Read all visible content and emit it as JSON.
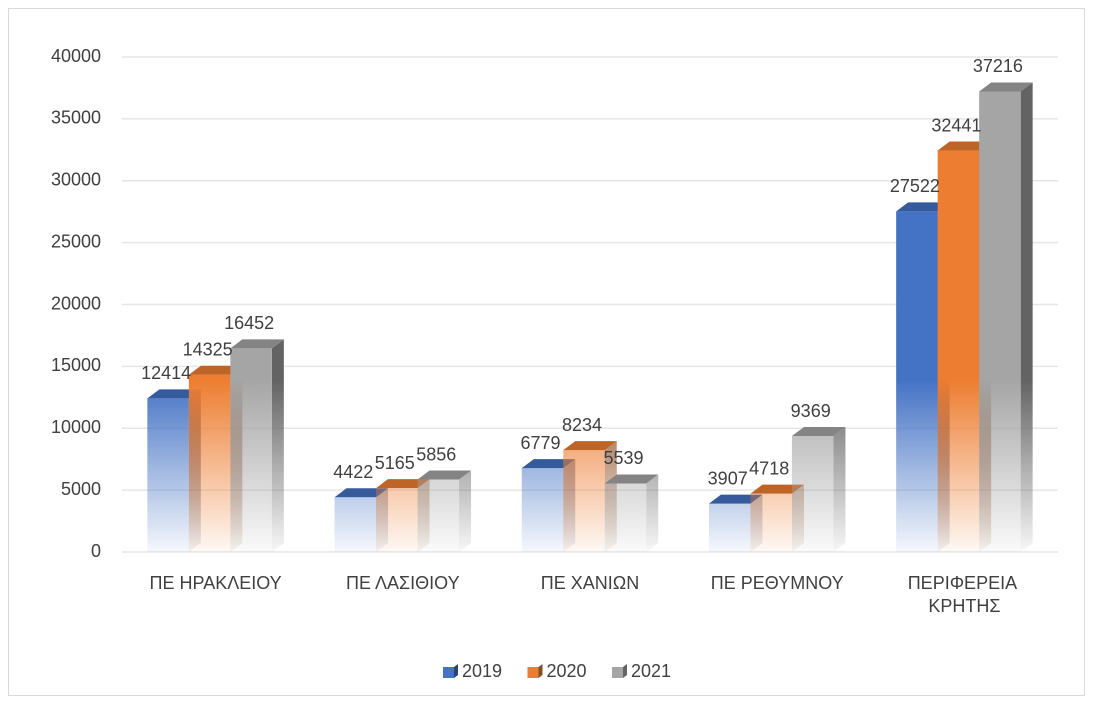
{
  "chart_data": {
    "type": "bar3d",
    "categories": [
      "ΠΕ ΗΡΑΚΛΕΙΟΥ",
      "ΠΕ ΛΑΣΙΘΙΟΥ",
      "ΠΕ ΧΑΝΙΩΝ",
      "ΠΕ ΡΕΘΥΜΝΟΥ",
      "ΠΕΡΙΦΕΡΕΙΑ ΚΡΗΤΗΣ"
    ],
    "series": [
      {
        "name": "2019",
        "color": "#4472c4",
        "values": [
          12414,
          4422,
          6779,
          3907,
          27522
        ]
      },
      {
        "name": "2020",
        "color": "#ed7d31",
        "values": [
          14325,
          5165,
          8234,
          4718,
          32441
        ]
      },
      {
        "name": "2021",
        "color": "#a5a5a5",
        "values": [
          16452,
          5856,
          5539,
          9369,
          37216
        ]
      }
    ],
    "ylim": [
      0,
      40000
    ],
    "yticks": [
      0,
      5000,
      10000,
      15000,
      20000,
      25000,
      30000,
      35000,
      40000
    ],
    "grid": true,
    "legend": "bottom"
  }
}
